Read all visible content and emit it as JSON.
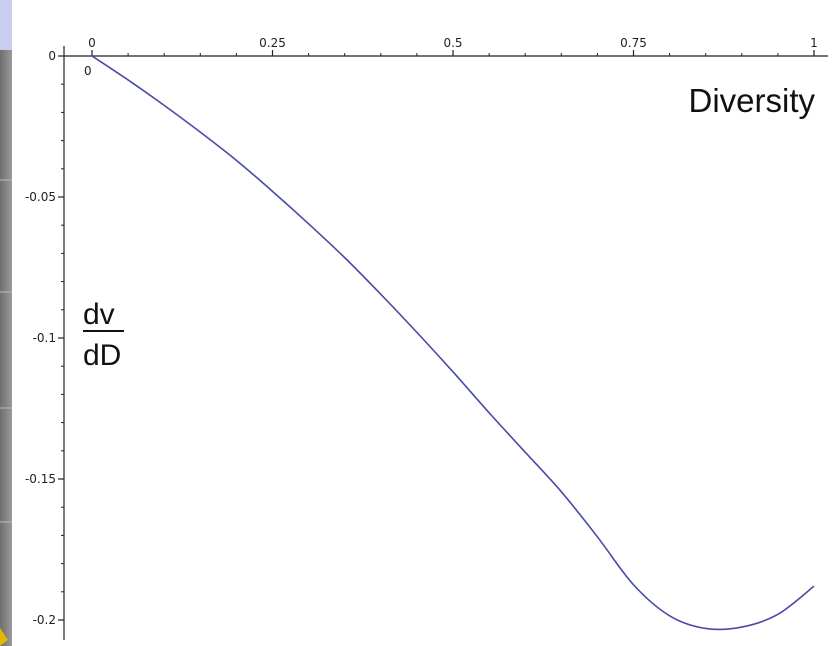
{
  "chart_data": {
    "type": "line",
    "title": "",
    "xlabel": "Diversity",
    "ylabel_numerator": "dv",
    "ylabel_denominator": "dD",
    "xlim": [
      0,
      1
    ],
    "ylim": [
      -0.2,
      0
    ],
    "x_ticks": [
      0,
      0.25,
      0.5,
      0.75,
      1
    ],
    "x_tick_labels": [
      "0",
      "0.25",
      "0.5",
      "0.75",
      "1"
    ],
    "y_ticks": [
      0,
      -0.05,
      -0.1,
      -0.15,
      -0.2
    ],
    "y_tick_labels": [
      "0",
      "-0.05",
      "-0.1",
      "-0.15",
      "-0.2"
    ],
    "origin_label": "0",
    "grid": false,
    "line_color": "#4a4aa8",
    "series": [
      {
        "x": [
          0,
          0.05,
          0.1,
          0.15,
          0.2,
          0.25,
          0.3,
          0.35,
          0.4,
          0.45,
          0.5,
          0.55,
          0.6,
          0.65,
          0.7,
          0.75,
          0.8,
          0.85,
          0.9,
          0.95,
          1.0
        ],
        "y": [
          0,
          -0.0085,
          -0.0175,
          -0.027,
          -0.037,
          -0.048,
          -0.0595,
          -0.0715,
          -0.0845,
          -0.098,
          -0.112,
          -0.1265,
          -0.1405,
          -0.1545,
          -0.1705,
          -0.1875,
          -0.1985,
          -0.203,
          -0.2025,
          -0.198,
          -0.188
        ]
      }
    ]
  }
}
